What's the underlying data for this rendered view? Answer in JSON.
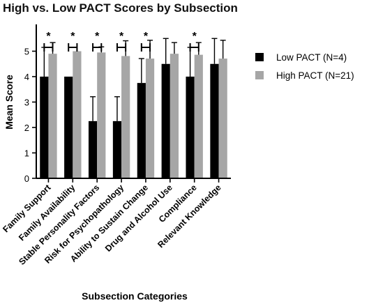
{
  "chart_data": {
    "type": "bar",
    "title": "High vs. Low PACT Scores by Subsection",
    "xlabel": "Subsection Categories",
    "ylabel": "Mean Score",
    "ylim": [
      0,
      6
    ],
    "yticks": [
      0,
      1,
      2,
      3,
      4,
      5
    ],
    "grid": false,
    "legend_position": "right",
    "categories": [
      "Family Support",
      "Family Availability",
      "Stable Personality Factors",
      "Risk for Psychopathology",
      "Ability to Sustain Change",
      "Drug and Alcohol Use",
      "Compliance",
      "Relevant Knowledge"
    ],
    "series": [
      {
        "name": "Low PACT (N=4)",
        "color": "#000000",
        "values": [
          4.0,
          4.0,
          2.25,
          2.25,
          3.75,
          4.5,
          4.0,
          4.5
        ],
        "error": [
          1.15,
          0.0,
          0.96,
          0.96,
          0.96,
          1.0,
          1.15,
          1.0
        ]
      },
      {
        "name": "High PACT (N=21)",
        "color": "#a6a6a6",
        "values": [
          4.9,
          5.0,
          4.95,
          4.81,
          4.71,
          4.9,
          4.86,
          4.71
        ],
        "error": [
          0.44,
          0.0,
          0.22,
          0.6,
          0.72,
          0.44,
          0.48,
          0.72
        ]
      }
    ],
    "significance": {
      "marker": "*",
      "categories": [
        0,
        1,
        2,
        3,
        4,
        6
      ]
    }
  }
}
